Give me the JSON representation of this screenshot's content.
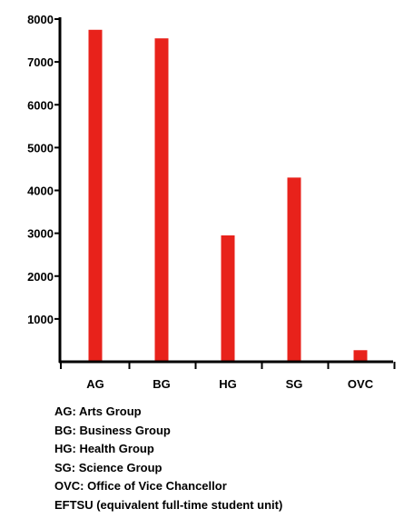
{
  "chart_data": {
    "type": "bar",
    "categories": [
      "AG",
      "BG",
      "HG",
      "SG",
      "OVC"
    ],
    "values": [
      7750,
      7550,
      2950,
      4300,
      270
    ],
    "title": "",
    "xlabel": "",
    "ylabel": "",
    "ylim": [
      0,
      8000
    ],
    "yticks": [
      1000,
      2000,
      3000,
      4000,
      5000,
      6000,
      7000,
      8000
    ],
    "grid": false,
    "bar_color": "#e8221b",
    "axis_color": "#000000"
  },
  "legend_notes": [
    "AG: Arts Group",
    "BG: Business Group",
    "HG: Health Group",
    "SG: Science Group",
    "OVC: Office of Vice Chancellor",
    "EFTSU (equivalent full-time student unit)"
  ]
}
